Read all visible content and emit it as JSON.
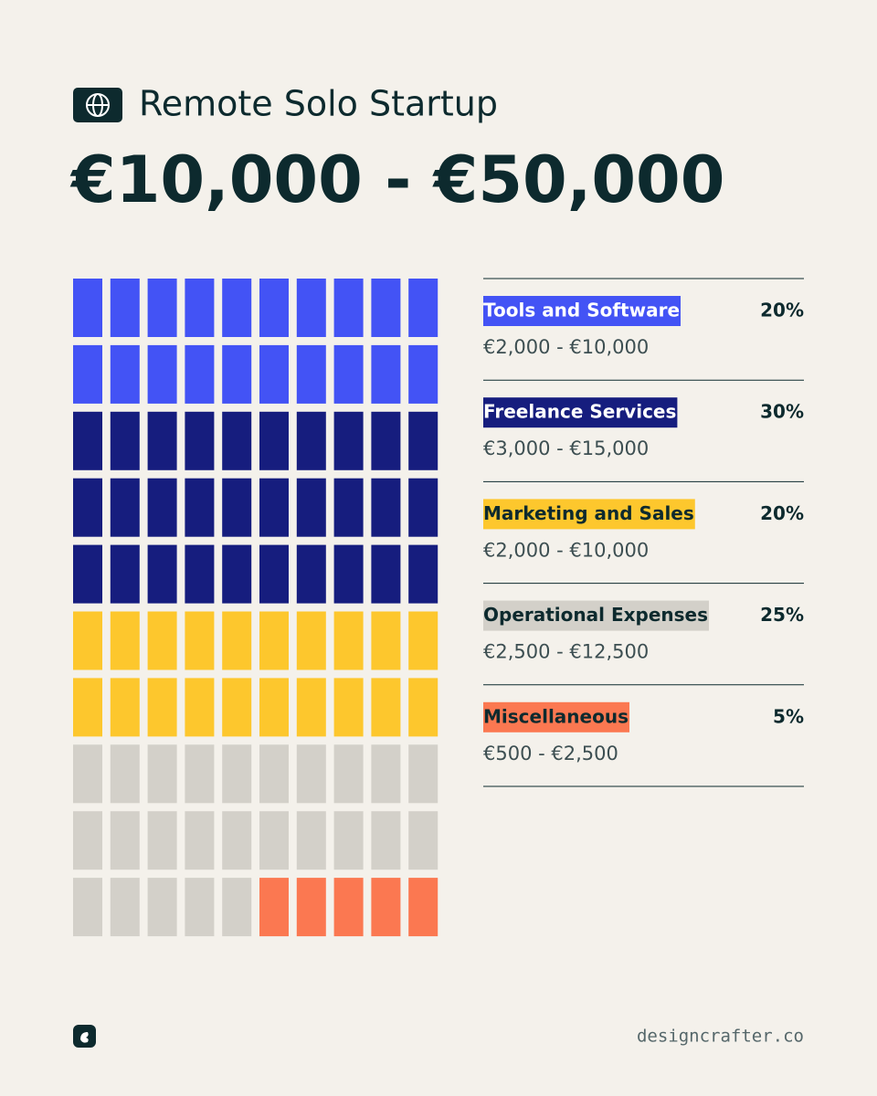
{
  "title": "Remote Solo Startup",
  "subtitle": "€10,000 - €50,000",
  "chart_data": {
    "type": "waffle",
    "categories": [
      "Tools and Software",
      "Freelance Services",
      "Marketing and Sales",
      "Operational Expenses",
      "Miscellaneous"
    ],
    "values": [
      20,
      30,
      20,
      25,
      5
    ],
    "value_labels": [
      "20%",
      "30%",
      "20%",
      "25%",
      "5%"
    ],
    "ranges": [
      "€2,000 - €10,000",
      "€3,000 - €15,000",
      "€2,000 - €10,000",
      "€2,500 - €12,500",
      "€500 - €2,500"
    ],
    "colors": [
      "#4353f5",
      "#161d7e",
      "#fdc72d",
      "#d3d0c9",
      "#fb7851"
    ]
  },
  "footer": "designcrafter.co"
}
